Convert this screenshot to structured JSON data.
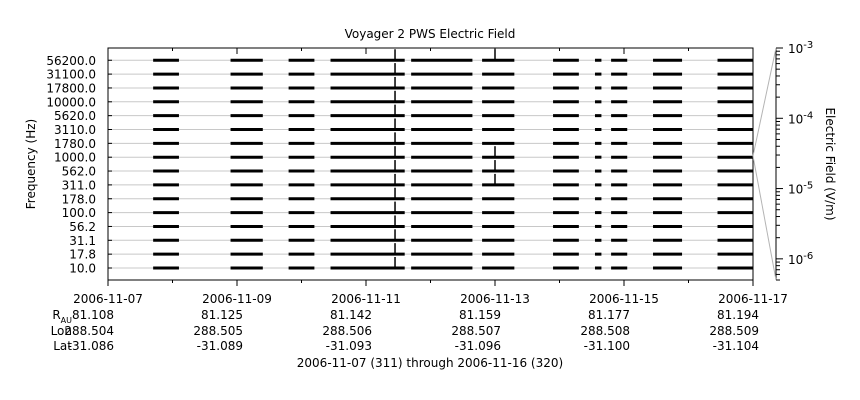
{
  "chart_data": {
    "type": "line",
    "title": "Voyager 2 PWS Electric Field",
    "ylabel": "Frequency (Hz)",
    "y2label": "Electric Field (V/m)",
    "frequency_channels": [
      "10.0",
      "17.8",
      "31.1",
      "56.2",
      "100.0",
      "178.0",
      "311.0",
      "562.0",
      "1000.0",
      "1780.0",
      "3110.0",
      "5620.0",
      "10000.0",
      "17800.0",
      "31100.0",
      "56200.0"
    ],
    "x_ticks": [
      "2006-11-07",
      "2006-11-09",
      "2006-11-11",
      "2006-11-13",
      "2006-11-15",
      "2006-11-17"
    ],
    "xlim": [
      "2006-11-07",
      "2006-11-17"
    ],
    "color_scale": {
      "scale": "log",
      "ylim": [
        5e-07,
        0.001
      ],
      "tick_labels": [
        {
          "base": "10",
          "exp": "-3"
        },
        {
          "base": "10",
          "exp": "-4"
        },
        {
          "base": "10",
          "exp": "-5"
        },
        {
          "base": "10",
          "exp": "-6"
        }
      ]
    },
    "data_gaps_days_after_start": [
      [
        0.0,
        0.7
      ],
      [
        1.1,
        1.9
      ],
      [
        2.4,
        2.8
      ],
      [
        3.2,
        3.45
      ],
      [
        4.6,
        4.7
      ],
      [
        5.65,
        5.8
      ],
      [
        6.3,
        6.9
      ],
      [
        7.3,
        7.55
      ],
      [
        7.65,
        7.8
      ],
      [
        8.05,
        8.45
      ],
      [
        8.9,
        9.45
      ]
    ],
    "bursts": [
      {
        "day": 4.45,
        "channels": [
          "10.0",
          "17.8",
          "31.1",
          "56.2",
          "100.0",
          "178.0",
          "311.0",
          "562.0",
          "1000.0",
          "1780.0",
          "3110.0",
          "5620.0",
          "10000.0",
          "17800.0",
          "31100.0",
          "56200.0"
        ]
      },
      {
        "day": 6.0,
        "channels": [
          "311.0",
          "562.0",
          "1000.0",
          "56200.0"
        ]
      }
    ],
    "ephemeris": {
      "rows": [
        {
          "label": "R",
          "sub": "AU",
          "values": [
            "81.108",
            "81.125",
            "81.142",
            "81.159",
            "81.177",
            "81.194"
          ]
        },
        {
          "label": "Lon",
          "sub": "",
          "values": [
            "288.504",
            "288.505",
            "288.506",
            "288.507",
            "288.508",
            "288.509"
          ]
        },
        {
          "label": "Lat",
          "sub": "",
          "values": [
            "-31.086",
            "-31.089",
            "-31.093",
            "-31.096",
            "-31.100",
            "-31.104"
          ]
        }
      ]
    },
    "footer": "2006-11-07 (311) through 2006-11-16 (320)"
  },
  "colors": {
    "trace": "#000000",
    "grid": "#c8c8c8",
    "gap_line": "#b4b4b4"
  }
}
